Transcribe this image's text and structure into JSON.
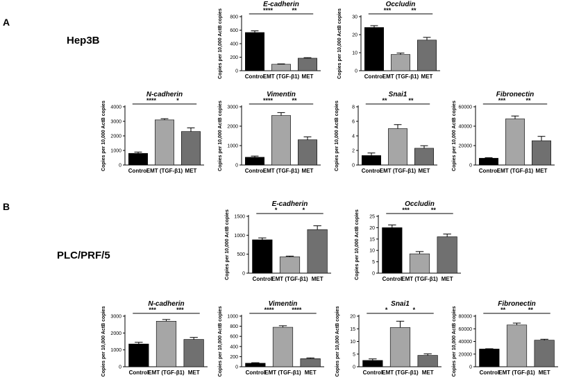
{
  "panels": {
    "a": {
      "label": "A",
      "cell_line": "Hep3B"
    },
    "b": {
      "label": "B",
      "cell_line": "PLC/PRF/5"
    }
  },
  "colors": {
    "control": "#000000",
    "emt": "#a6a6a6",
    "met": "#707070"
  },
  "chart_data": [
    {
      "type": "bar",
      "panel": "A",
      "title": "E-cadherin",
      "ylabel": "Copies per 10,000 ActB copies",
      "categories": [
        "Control",
        "EMT (TGF-β1)",
        "MET"
      ],
      "values": [
        565,
        95,
        185
      ],
      "errors": [
        25,
        6,
        8
      ],
      "ylim": [
        0,
        800
      ],
      "yticks": [
        "0",
        "200",
        "400",
        "600",
        "800"
      ],
      "sig": [
        {
          "from": 0,
          "to": 1,
          "label": "****"
        },
        {
          "from": 1,
          "to": 2,
          "label": "**"
        }
      ]
    },
    {
      "type": "bar",
      "panel": "A",
      "title": "Occludin",
      "ylabel": "Copies per 10,000 ActB copies",
      "categories": [
        "Control",
        "EMT (TGF-β1)",
        "MET"
      ],
      "values": [
        24,
        9,
        17
      ],
      "errors": [
        1,
        0.8,
        1.5
      ],
      "ylim": [
        0,
        30
      ],
      "yticks": [
        "0",
        "10",
        "20",
        "30"
      ],
      "sig": [
        {
          "from": 0,
          "to": 1,
          "label": "***"
        },
        {
          "from": 1,
          "to": 2,
          "label": "**"
        }
      ]
    },
    {
      "type": "bar",
      "panel": "A",
      "title": "N-cadherin",
      "ylabel": "Copies per 10,000 ActB copies",
      "categories": [
        "Control",
        "EMT (TGF-β1)",
        "MET"
      ],
      "values": [
        800,
        3100,
        2300
      ],
      "errors": [
        90,
        80,
        250
      ],
      "ylim": [
        0,
        4000
      ],
      "yticks": [
        "0",
        "1000",
        "2000",
        "3000",
        "4000"
      ],
      "sig": [
        {
          "from": 0,
          "to": 1,
          "label": "****"
        },
        {
          "from": 1,
          "to": 2,
          "label": "*"
        }
      ]
    },
    {
      "type": "bar",
      "panel": "A",
      "title": "Vimentin",
      "ylabel": "Copies per 10,000 ActB copies",
      "categories": [
        "Control",
        "EMT (TGF-β1)",
        "MET"
      ],
      "values": [
        400,
        2550,
        1300
      ],
      "errors": [
        60,
        150,
        150
      ],
      "ylim": [
        0,
        3000
      ],
      "yticks": [
        "0",
        "1000",
        "2000",
        "3000"
      ],
      "sig": [
        {
          "from": 0,
          "to": 1,
          "label": "****"
        },
        {
          "from": 1,
          "to": 2,
          "label": "**"
        }
      ]
    },
    {
      "type": "bar",
      "panel": "A",
      "title": "Snai1",
      "ylabel": "Copies per 10,000 ActB copies",
      "categories": [
        "Control",
        "EMT (TGF-β1)",
        "MET"
      ],
      "values": [
        1.3,
        5.0,
        2.3
      ],
      "errors": [
        0.35,
        0.55,
        0.35
      ],
      "ylim": [
        0,
        8
      ],
      "yticks": [
        "0",
        "2",
        "4",
        "6",
        "8"
      ],
      "sig": [
        {
          "from": 0,
          "to": 1,
          "label": "**"
        },
        {
          "from": 1,
          "to": 2,
          "label": "**"
        }
      ]
    },
    {
      "type": "bar",
      "panel": "A",
      "title": "Fibronectin",
      "ylabel": "Copies per 10,000 ActB copies",
      "categories": [
        "Control",
        "EMT (TGF-β1)",
        "MET"
      ],
      "values": [
        7000,
        47500,
        25000
      ],
      "errors": [
        500,
        3000,
        4500
      ],
      "ylim": [
        0,
        60000
      ],
      "yticks": [
        "0",
        "20000",
        "40000",
        "60000"
      ],
      "sig": [
        {
          "from": 0,
          "to": 1,
          "label": "***"
        },
        {
          "from": 1,
          "to": 2,
          "label": "**"
        }
      ]
    },
    {
      "type": "bar",
      "panel": "B",
      "title": "E-cadherin",
      "ylabel": "Copies per 10,000 ActB copies",
      "categories": [
        "Control",
        "EMT (TGF-β1)",
        "MET"
      ],
      "values": [
        880,
        430,
        1150
      ],
      "errors": [
        50,
        20,
        100
      ],
      "ylim": [
        0,
        1500
      ],
      "yticks": [
        "0",
        "500",
        "1000",
        "1500"
      ],
      "sig": [
        {
          "from": 0,
          "to": 1,
          "label": "*"
        },
        {
          "from": 1,
          "to": 2,
          "label": "*"
        }
      ]
    },
    {
      "type": "bar",
      "panel": "B",
      "title": "Occludin",
      "ylabel": "Copies per 10,000 ActB copies",
      "categories": [
        "Control",
        "EMT (TGF-β1)",
        "MET"
      ],
      "values": [
        20,
        8.5,
        16
      ],
      "errors": [
        1.2,
        1,
        1.2
      ],
      "ylim": [
        0,
        25
      ],
      "yticks": [
        "0",
        "5",
        "10",
        "15",
        "20",
        "25"
      ],
      "sig": [
        {
          "from": 0,
          "to": 1,
          "label": "***"
        },
        {
          "from": 1,
          "to": 2,
          "label": "**"
        }
      ]
    },
    {
      "type": "bar",
      "panel": "B",
      "title": "N-cadherin",
      "ylabel": "Copies per 10,000 ActB copies",
      "categories": [
        "Control",
        "EMT (TGF-β1)",
        "MET"
      ],
      "values": [
        1350,
        2700,
        1620
      ],
      "errors": [
        100,
        100,
        120
      ],
      "ylim": [
        0,
        3000
      ],
      "yticks": [
        "0",
        "1000",
        "2000",
        "3000"
      ],
      "sig": [
        {
          "from": 0,
          "to": 1,
          "label": "***"
        },
        {
          "from": 1,
          "to": 2,
          "label": "***"
        }
      ]
    },
    {
      "type": "bar",
      "panel": "B",
      "title": "Vimentin",
      "ylabel": "Copies per 10,000 ActB copies",
      "categories": [
        "Control",
        "EMT (TGF-β1)",
        "MET"
      ],
      "values": [
        70,
        780,
        160
      ],
      "errors": [
        10,
        30,
        15
      ],
      "ylim": [
        0,
        1000
      ],
      "yticks": [
        "0",
        "200",
        "400",
        "600",
        "800",
        "1000"
      ],
      "sig": [
        {
          "from": 0,
          "to": 1,
          "label": "****"
        },
        {
          "from": 1,
          "to": 2,
          "label": "****"
        }
      ]
    },
    {
      "type": "bar",
      "panel": "B",
      "title": "Snai1",
      "ylabel": "Copies per 10,000 ActB copies",
      "categories": [
        "Control",
        "EMT (TGF-β1)",
        "MET"
      ],
      "values": [
        2.5,
        15.5,
        4.5
      ],
      "errors": [
        0.6,
        2.5,
        0.6
      ],
      "ylim": [
        0,
        20
      ],
      "yticks": [
        "0",
        "5",
        "10",
        "15",
        "20"
      ],
      "sig": [
        {
          "from": 0,
          "to": 1,
          "label": "*"
        },
        {
          "from": 1,
          "to": 2,
          "label": "*"
        }
      ]
    },
    {
      "type": "bar",
      "panel": "B",
      "title": "Fibronectin",
      "ylabel": "Copies per 10,000 ActB copies",
      "categories": [
        "Control",
        "EMT (TGF-β1)",
        "MET"
      ],
      "values": [
        28000,
        66000,
        42000
      ],
      "errors": [
        500,
        3000,
        1500
      ],
      "ylim": [
        0,
        80000
      ],
      "yticks": [
        "0",
        "20000",
        "40000",
        "60000",
        "80000"
      ],
      "sig": [
        {
          "from": 0,
          "to": 1,
          "label": "**"
        },
        {
          "from": 1,
          "to": 2,
          "label": "**"
        }
      ]
    }
  ]
}
